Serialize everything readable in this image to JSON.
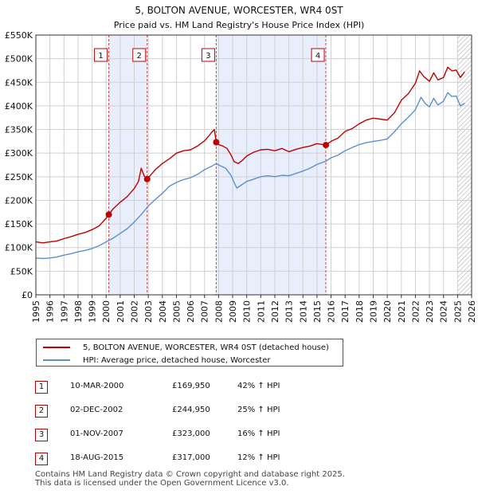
{
  "chart_data": {
    "type": "line",
    "title": "5, BOLTON AVENUE, WORCESTER, WR4 0ST",
    "subtitle": "Price paid vs. HM Land Registry's House Price Index (HPI)",
    "xlabel": "",
    "ylabel": "",
    "xlim": [
      1995,
      2026
    ],
    "ylim": [
      0,
      550000
    ],
    "y_ticks": [
      {
        "value": 0,
        "label": "£0"
      },
      {
        "value": 50000,
        "label": "£50K"
      },
      {
        "value": 100000,
        "label": "£100K"
      },
      {
        "value": 150000,
        "label": "£150K"
      },
      {
        "value": 200000,
        "label": "£200K"
      },
      {
        "value": 250000,
        "label": "£250K"
      },
      {
        "value": 300000,
        "label": "£300K"
      },
      {
        "value": 350000,
        "label": "£350K"
      },
      {
        "value": 400000,
        "label": "£400K"
      },
      {
        "value": 450000,
        "label": "£450K"
      },
      {
        "value": 500000,
        "label": "£500K"
      },
      {
        "value": 550000,
        "label": "£550K"
      }
    ],
    "x_ticks": [
      "1995",
      "1996",
      "1997",
      "1998",
      "1999",
      "2000",
      "2001",
      "2002",
      "2003",
      "2004",
      "2005",
      "2006",
      "2007",
      "2008",
      "2009",
      "2010",
      "2011",
      "2012",
      "2013",
      "2014",
      "2015",
      "2016",
      "2017",
      "2018",
      "2019",
      "2020",
      "2021",
      "2022",
      "2023",
      "2024",
      "2025",
      "2026"
    ],
    "grid": true,
    "colors": {
      "price": "#c00000",
      "hpi": "#5b8fd0",
      "shade": "#e8eefb",
      "sale_line": "#d04040",
      "grid": "#d0d0d0",
      "axis": "#333333",
      "hatch": "#a0a0a0"
    },
    "shaded_ranges": [
      [
        2000.19,
        2002.92
      ],
      [
        2007.83,
        2015.63
      ]
    ],
    "hatched_from": 2025.0,
    "series": [
      {
        "name": "5, BOLTON AVENUE, WORCESTER, WR4 0ST (detached house)",
        "color": "#c00000",
        "points": [
          [
            1995.0,
            112000
          ],
          [
            1995.5,
            110000
          ],
          [
            1996.0,
            112000
          ],
          [
            1996.5,
            114000
          ],
          [
            1997.0,
            119000
          ],
          [
            1997.5,
            123000
          ],
          [
            1998.0,
            128000
          ],
          [
            1998.5,
            132000
          ],
          [
            1999.0,
            138000
          ],
          [
            1999.5,
            146000
          ],
          [
            2000.0,
            162000
          ],
          [
            2000.19,
            169950
          ],
          [
            2000.5,
            182000
          ],
          [
            2001.0,
            196000
          ],
          [
            2001.5,
            208000
          ],
          [
            2002.0,
            225000
          ],
          [
            2002.3,
            240000
          ],
          [
            2002.5,
            268000
          ],
          [
            2002.7,
            252000
          ],
          [
            2002.92,
            244950
          ],
          [
            2003.2,
            255000
          ],
          [
            2003.5,
            265000
          ],
          [
            2004.0,
            278000
          ],
          [
            2004.5,
            288000
          ],
          [
            2005.0,
            300000
          ],
          [
            2005.5,
            305000
          ],
          [
            2006.0,
            307000
          ],
          [
            2006.5,
            315000
          ],
          [
            2007.0,
            326000
          ],
          [
            2007.3,
            336000
          ],
          [
            2007.5,
            344000
          ],
          [
            2007.7,
            350000
          ],
          [
            2007.83,
            323000
          ],
          [
            2008.0,
            318000
          ],
          [
            2008.3,
            315000
          ],
          [
            2008.6,
            310000
          ],
          [
            2008.9,
            295000
          ],
          [
            2009.1,
            282000
          ],
          [
            2009.4,
            278000
          ],
          [
            2009.7,
            285000
          ],
          [
            2010.0,
            294000
          ],
          [
            2010.5,
            302000
          ],
          [
            2011.0,
            307000
          ],
          [
            2011.5,
            308000
          ],
          [
            2012.0,
            305000
          ],
          [
            2012.5,
            310000
          ],
          [
            2013.0,
            303000
          ],
          [
            2013.5,
            308000
          ],
          [
            2014.0,
            312000
          ],
          [
            2014.5,
            315000
          ],
          [
            2015.0,
            320000
          ],
          [
            2015.63,
            317000
          ],
          [
            2016.0,
            325000
          ],
          [
            2016.5,
            332000
          ],
          [
            2017.0,
            346000
          ],
          [
            2017.5,
            352000
          ],
          [
            2018.0,
            362000
          ],
          [
            2018.5,
            370000
          ],
          [
            2019.0,
            374000
          ],
          [
            2019.5,
            372000
          ],
          [
            2020.0,
            370000
          ],
          [
            2020.5,
            385000
          ],
          [
            2021.0,
            412000
          ],
          [
            2021.5,
            426000
          ],
          [
            2022.0,
            448000
          ],
          [
            2022.3,
            474000
          ],
          [
            2022.6,
            462000
          ],
          [
            2023.0,
            452000
          ],
          [
            2023.3,
            470000
          ],
          [
            2023.6,
            455000
          ],
          [
            2024.0,
            460000
          ],
          [
            2024.3,
            482000
          ],
          [
            2024.6,
            474000
          ],
          [
            2024.9,
            476000
          ],
          [
            2025.2,
            460000
          ],
          [
            2025.5,
            472000
          ]
        ]
      },
      {
        "name": "HPI: Average price, detached house, Worcester",
        "color": "#5b8fd0",
        "points": [
          [
            1995.0,
            78000
          ],
          [
            1995.5,
            77000
          ],
          [
            1996.0,
            78000
          ],
          [
            1996.5,
            80000
          ],
          [
            1997.0,
            84000
          ],
          [
            1997.5,
            87000
          ],
          [
            1998.0,
            91000
          ],
          [
            1998.5,
            94000
          ],
          [
            1999.0,
            98000
          ],
          [
            1999.5,
            104000
          ],
          [
            2000.0,
            112000
          ],
          [
            2000.5,
            120000
          ],
          [
            2001.0,
            130000
          ],
          [
            2001.5,
            140000
          ],
          [
            2002.0,
            154000
          ],
          [
            2002.5,
            170000
          ],
          [
            2003.0,
            188000
          ],
          [
            2003.5,
            202000
          ],
          [
            2004.0,
            215000
          ],
          [
            2004.5,
            230000
          ],
          [
            2005.0,
            238000
          ],
          [
            2005.5,
            244000
          ],
          [
            2006.0,
            248000
          ],
          [
            2006.5,
            255000
          ],
          [
            2007.0,
            265000
          ],
          [
            2007.5,
            272000
          ],
          [
            2007.83,
            278000
          ],
          [
            2008.0,
            275000
          ],
          [
            2008.5,
            268000
          ],
          [
            2008.9,
            252000
          ],
          [
            2009.1,
            238000
          ],
          [
            2009.3,
            226000
          ],
          [
            2009.6,
            232000
          ],
          [
            2010.0,
            240000
          ],
          [
            2010.5,
            245000
          ],
          [
            2011.0,
            250000
          ],
          [
            2011.5,
            252000
          ],
          [
            2012.0,
            250000
          ],
          [
            2012.5,
            253000
          ],
          [
            2013.0,
            252000
          ],
          [
            2013.5,
            257000
          ],
          [
            2014.0,
            262000
          ],
          [
            2014.5,
            268000
          ],
          [
            2015.0,
            276000
          ],
          [
            2015.63,
            283000
          ],
          [
            2016.0,
            290000
          ],
          [
            2016.5,
            296000
          ],
          [
            2017.0,
            305000
          ],
          [
            2017.5,
            312000
          ],
          [
            2018.0,
            318000
          ],
          [
            2018.5,
            322000
          ],
          [
            2019.0,
            325000
          ],
          [
            2019.5,
            327000
          ],
          [
            2020.0,
            330000
          ],
          [
            2020.5,
            345000
          ],
          [
            2021.0,
            362000
          ],
          [
            2021.5,
            376000
          ],
          [
            2022.0,
            392000
          ],
          [
            2022.4,
            418000
          ],
          [
            2022.7,
            405000
          ],
          [
            2023.0,
            398000
          ],
          [
            2023.3,
            416000
          ],
          [
            2023.6,
            402000
          ],
          [
            2024.0,
            410000
          ],
          [
            2024.3,
            428000
          ],
          [
            2024.6,
            420000
          ],
          [
            2024.9,
            421000
          ],
          [
            2025.2,
            400000
          ],
          [
            2025.5,
            406000
          ]
        ]
      }
    ],
    "sales": [
      {
        "marker": "1",
        "x": 2000.19,
        "price": 169950,
        "date": "10-MAR-2000",
        "price_label": "£169,950",
        "hpi_label": "42% ↑ HPI"
      },
      {
        "marker": "2",
        "x": 2002.92,
        "price": 244950,
        "date": "02-DEC-2002",
        "price_label": "£244,950",
        "hpi_label": "25% ↑ HPI"
      },
      {
        "marker": "3",
        "x": 2007.83,
        "price": 323000,
        "date": "01-NOV-2007",
        "price_label": "£323,000",
        "hpi_label": "16% ↑ HPI"
      },
      {
        "marker": "4",
        "x": 2015.63,
        "price": 317000,
        "date": "18-AUG-2015",
        "price_label": "£317,000",
        "hpi_label": "12% ↑ HPI"
      }
    ],
    "marker_label_offsets": [
      0,
      0,
      0,
      0
    ]
  },
  "legend": {
    "price_label": "5, BOLTON AVENUE, WORCESTER, WR4 0ST (detached house)",
    "hpi_label": "HPI: Average price, detached house, Worcester"
  },
  "footer": {
    "line1": "Contains HM Land Registry data © Crown copyright and database right 2025.",
    "line2": "This data is licensed under the Open Government Licence v3.0."
  }
}
